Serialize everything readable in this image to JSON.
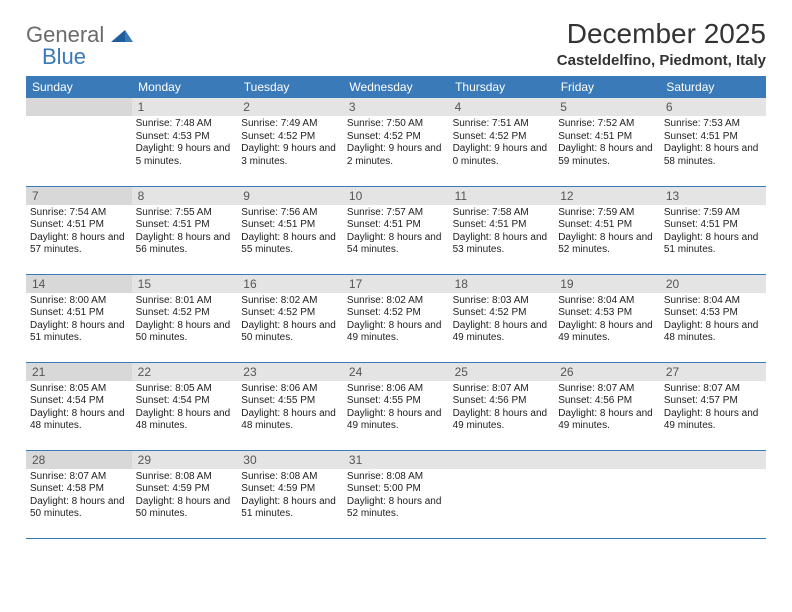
{
  "brand": {
    "word1": "General",
    "word2": "Blue"
  },
  "title": "December 2025",
  "subtitle": "Casteldelfino, Piedmont, Italy",
  "colors": {
    "header_bg": "#3a7ab8",
    "header_fg": "#ffffff",
    "daynum_bg": "#e4e4e4",
    "daynum_shade_bg": "#d8d8d8",
    "rule": "#3a7ab8",
    "text": "#222222"
  },
  "fonts": {
    "title_size": 28,
    "subtitle_size": 15,
    "dayhdr_size": 12,
    "daynum_size": 12,
    "body_size": 10
  },
  "day_headers": [
    "Sunday",
    "Monday",
    "Tuesday",
    "Wednesday",
    "Thursday",
    "Friday",
    "Saturday"
  ],
  "days": [
    {
      "n": "",
      "sr": "",
      "ss": "",
      "dl": ""
    },
    {
      "n": "1",
      "sr": "Sunrise: 7:48 AM",
      "ss": "Sunset: 4:53 PM",
      "dl": "Daylight: 9 hours and 5 minutes."
    },
    {
      "n": "2",
      "sr": "Sunrise: 7:49 AM",
      "ss": "Sunset: 4:52 PM",
      "dl": "Daylight: 9 hours and 3 minutes."
    },
    {
      "n": "3",
      "sr": "Sunrise: 7:50 AM",
      "ss": "Sunset: 4:52 PM",
      "dl": "Daylight: 9 hours and 2 minutes."
    },
    {
      "n": "4",
      "sr": "Sunrise: 7:51 AM",
      "ss": "Sunset: 4:52 PM",
      "dl": "Daylight: 9 hours and 0 minutes."
    },
    {
      "n": "5",
      "sr": "Sunrise: 7:52 AM",
      "ss": "Sunset: 4:51 PM",
      "dl": "Daylight: 8 hours and 59 minutes."
    },
    {
      "n": "6",
      "sr": "Sunrise: 7:53 AM",
      "ss": "Sunset: 4:51 PM",
      "dl": "Daylight: 8 hours and 58 minutes."
    },
    {
      "n": "7",
      "sr": "Sunrise: 7:54 AM",
      "ss": "Sunset: 4:51 PM",
      "dl": "Daylight: 8 hours and 57 minutes."
    },
    {
      "n": "8",
      "sr": "Sunrise: 7:55 AM",
      "ss": "Sunset: 4:51 PM",
      "dl": "Daylight: 8 hours and 56 minutes."
    },
    {
      "n": "9",
      "sr": "Sunrise: 7:56 AM",
      "ss": "Sunset: 4:51 PM",
      "dl": "Daylight: 8 hours and 55 minutes."
    },
    {
      "n": "10",
      "sr": "Sunrise: 7:57 AM",
      "ss": "Sunset: 4:51 PM",
      "dl": "Daylight: 8 hours and 54 minutes."
    },
    {
      "n": "11",
      "sr": "Sunrise: 7:58 AM",
      "ss": "Sunset: 4:51 PM",
      "dl": "Daylight: 8 hours and 53 minutes."
    },
    {
      "n": "12",
      "sr": "Sunrise: 7:59 AM",
      "ss": "Sunset: 4:51 PM",
      "dl": "Daylight: 8 hours and 52 minutes."
    },
    {
      "n": "13",
      "sr": "Sunrise: 7:59 AM",
      "ss": "Sunset: 4:51 PM",
      "dl": "Daylight: 8 hours and 51 minutes."
    },
    {
      "n": "14",
      "sr": "Sunrise: 8:00 AM",
      "ss": "Sunset: 4:51 PM",
      "dl": "Daylight: 8 hours and 51 minutes."
    },
    {
      "n": "15",
      "sr": "Sunrise: 8:01 AM",
      "ss": "Sunset: 4:52 PM",
      "dl": "Daylight: 8 hours and 50 minutes."
    },
    {
      "n": "16",
      "sr": "Sunrise: 8:02 AM",
      "ss": "Sunset: 4:52 PM",
      "dl": "Daylight: 8 hours and 50 minutes."
    },
    {
      "n": "17",
      "sr": "Sunrise: 8:02 AM",
      "ss": "Sunset: 4:52 PM",
      "dl": "Daylight: 8 hours and 49 minutes."
    },
    {
      "n": "18",
      "sr": "Sunrise: 8:03 AM",
      "ss": "Sunset: 4:52 PM",
      "dl": "Daylight: 8 hours and 49 minutes."
    },
    {
      "n": "19",
      "sr": "Sunrise: 8:04 AM",
      "ss": "Sunset: 4:53 PM",
      "dl": "Daylight: 8 hours and 49 minutes."
    },
    {
      "n": "20",
      "sr": "Sunrise: 8:04 AM",
      "ss": "Sunset: 4:53 PM",
      "dl": "Daylight: 8 hours and 48 minutes."
    },
    {
      "n": "21",
      "sr": "Sunrise: 8:05 AM",
      "ss": "Sunset: 4:54 PM",
      "dl": "Daylight: 8 hours and 48 minutes."
    },
    {
      "n": "22",
      "sr": "Sunrise: 8:05 AM",
      "ss": "Sunset: 4:54 PM",
      "dl": "Daylight: 8 hours and 48 minutes."
    },
    {
      "n": "23",
      "sr": "Sunrise: 8:06 AM",
      "ss": "Sunset: 4:55 PM",
      "dl": "Daylight: 8 hours and 48 minutes."
    },
    {
      "n": "24",
      "sr": "Sunrise: 8:06 AM",
      "ss": "Sunset: 4:55 PM",
      "dl": "Daylight: 8 hours and 49 minutes."
    },
    {
      "n": "25",
      "sr": "Sunrise: 8:07 AM",
      "ss": "Sunset: 4:56 PM",
      "dl": "Daylight: 8 hours and 49 minutes."
    },
    {
      "n": "26",
      "sr": "Sunrise: 8:07 AM",
      "ss": "Sunset: 4:56 PM",
      "dl": "Daylight: 8 hours and 49 minutes."
    },
    {
      "n": "27",
      "sr": "Sunrise: 8:07 AM",
      "ss": "Sunset: 4:57 PM",
      "dl": "Daylight: 8 hours and 49 minutes."
    },
    {
      "n": "28",
      "sr": "Sunrise: 8:07 AM",
      "ss": "Sunset: 4:58 PM",
      "dl": "Daylight: 8 hours and 50 minutes."
    },
    {
      "n": "29",
      "sr": "Sunrise: 8:08 AM",
      "ss": "Sunset: 4:59 PM",
      "dl": "Daylight: 8 hours and 50 minutes."
    },
    {
      "n": "30",
      "sr": "Sunrise: 8:08 AM",
      "ss": "Sunset: 4:59 PM",
      "dl": "Daylight: 8 hours and 51 minutes."
    },
    {
      "n": "31",
      "sr": "Sunrise: 8:08 AM",
      "ss": "Sunset: 5:00 PM",
      "dl": "Daylight: 8 hours and 52 minutes."
    },
    {
      "n": "",
      "sr": "",
      "ss": "",
      "dl": ""
    },
    {
      "n": "",
      "sr": "",
      "ss": "",
      "dl": ""
    },
    {
      "n": "",
      "sr": "",
      "ss": "",
      "dl": ""
    }
  ]
}
